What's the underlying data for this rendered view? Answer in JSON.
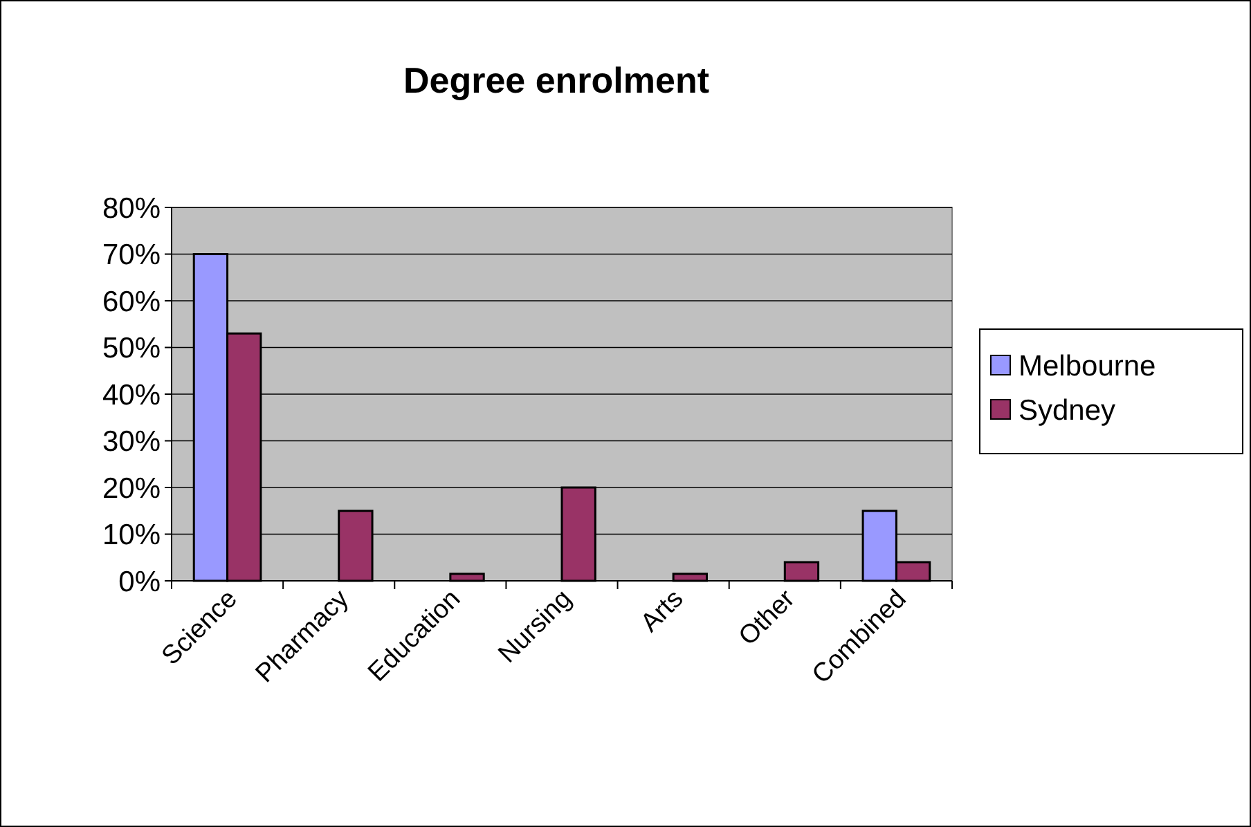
{
  "chart_data": {
    "type": "bar",
    "title": "Degree enrolment",
    "categories": [
      "Science",
      "Pharmacy",
      "Education",
      "Nursing",
      "Arts",
      "Other",
      "Combined"
    ],
    "series": [
      {
        "name": "Melbourne",
        "color": "#9999ff",
        "values": [
          70,
          0,
          0,
          0,
          0,
          0,
          15
        ]
      },
      {
        "name": "Sydney",
        "color": "#993366",
        "values": [
          53,
          15,
          1.5,
          20,
          1.5,
          4,
          4
        ]
      }
    ],
    "ylim": [
      0,
      80
    ],
    "yticks": [
      {
        "value": 0,
        "label": "0%"
      },
      {
        "value": 10,
        "label": "10%"
      },
      {
        "value": 20,
        "label": "20%"
      },
      {
        "value": 30,
        "label": "30%"
      },
      {
        "value": 40,
        "label": "40%"
      },
      {
        "value": 50,
        "label": "50%"
      },
      {
        "value": 60,
        "label": "60%"
      },
      {
        "value": 70,
        "label": "70%"
      },
      {
        "value": 80,
        "label": "80%"
      }
    ],
    "grid": "y",
    "legend": "right"
  }
}
